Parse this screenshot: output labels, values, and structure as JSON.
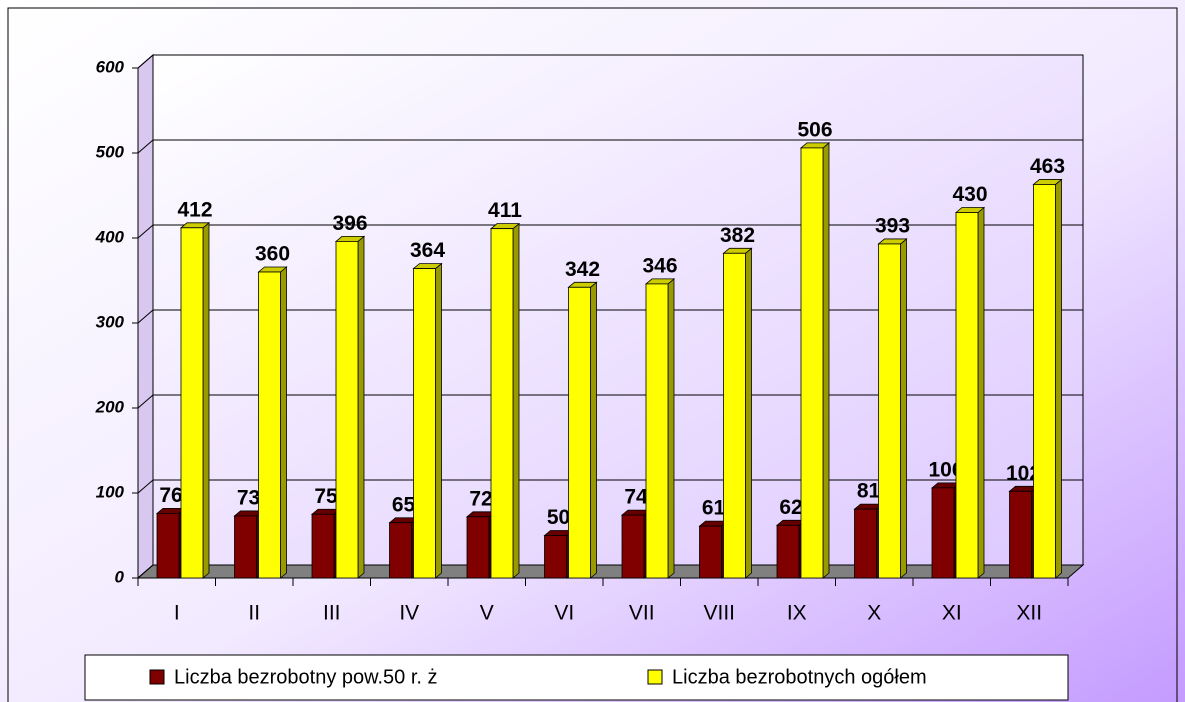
{
  "chart_data": {
    "type": "bar",
    "categories": [
      "I",
      "II",
      "III",
      "IV",
      "V",
      "VI",
      "VII",
      "VIII",
      "IX",
      "X",
      "XI",
      "XII"
    ],
    "series": [
      {
        "name": "Liczba bezrobotny pow.50 r. ż",
        "color": "#800000",
        "values": [
          76,
          73,
          75,
          65,
          72,
          50,
          74,
          61,
          62,
          81,
          106,
          102
        ]
      },
      {
        "name": "Liczba bezrobotnych ogółem",
        "color": "#ffff00",
        "values": [
          412,
          360,
          396,
          364,
          411,
          342,
          346,
          382,
          506,
          393,
          430,
          463
        ]
      }
    ],
    "ylim": [
      0,
      600
    ],
    "yticks": [
      0,
      100,
      200,
      300,
      400,
      500,
      600
    ],
    "grid": true,
    "legend": "bottom"
  }
}
